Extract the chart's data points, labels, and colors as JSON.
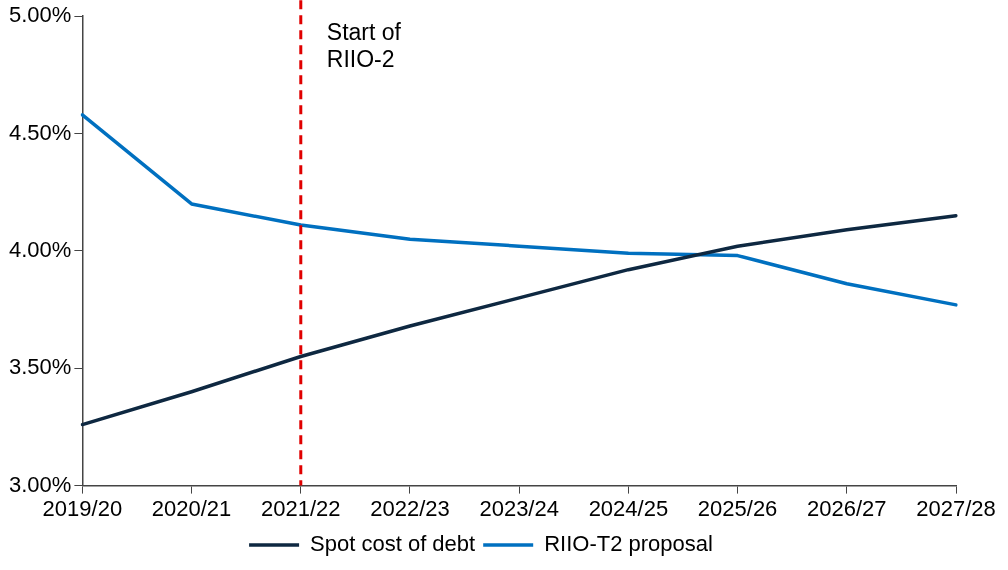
{
  "chart_data": {
    "type": "line",
    "categories": [
      "2019/20",
      "2020/21",
      "2021/22",
      "2022/23",
      "2023/24",
      "2024/25",
      "2025/26",
      "2026/27",
      "2027/28"
    ],
    "ylim": [
      3.0,
      5.0
    ],
    "yticks": [
      {
        "value": 3.0,
        "label": "3.00%"
      },
      {
        "value": 3.5,
        "label": "3.50%"
      },
      {
        "value": 4.0,
        "label": "4.00%"
      },
      {
        "value": 4.5,
        "label": "4.50%"
      },
      {
        "value": 5.0,
        "label": "5.00%"
      }
    ],
    "series": [
      {
        "name": "Spot cost of debt",
        "color": "#0e2841",
        "values": [
          3.26,
          3.4,
          3.55,
          3.68,
          3.8,
          3.92,
          4.02,
          4.09,
          4.15
        ]
      },
      {
        "name": "RIIO-T2 proposal",
        "color": "#0070c0",
        "values": [
          4.58,
          4.2,
          4.11,
          4.05,
          4.02,
          3.99,
          3.98,
          3.86,
          3.77
        ]
      }
    ],
    "ref_lines": [
      {
        "axis": "x",
        "value": "2021/22",
        "label": "Start of RIIO-2",
        "color": "#e00000",
        "line_style": "dashed"
      }
    ],
    "grid": false,
    "legend": "bottom",
    "marker": "none",
    "line_style": "solid"
  }
}
